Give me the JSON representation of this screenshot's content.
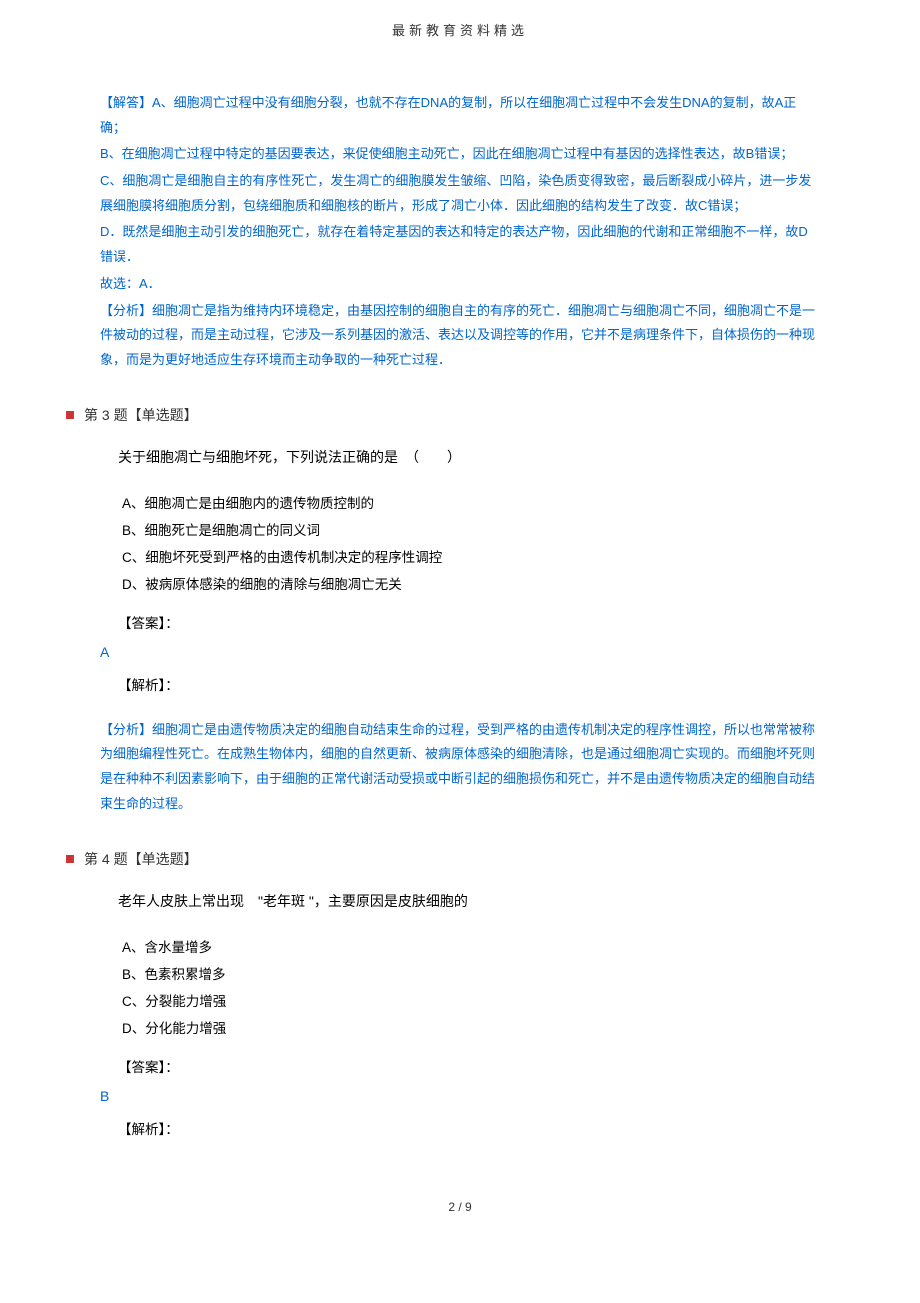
{
  "header": {
    "title": "最新教育资料精选"
  },
  "explanation1": {
    "line1": "【解答】A、细胞凋亡过程中没有细胞分裂，也就不存在DNA的复制，所以在细胞凋亡过程中不会发生DNA的复制，故A正确；",
    "line2": "B、在细胞凋亡过程中特定的基因要表达，来促使细胞主动死亡，因此在细胞凋亡过程中有基因的选择性表达，故B错误；",
    "line3": "C、细胞凋亡是细胞自主的有序性死亡，发生凋亡的细胞膜发生皱缩、凹陷，染色质变得致密，最后断裂成小碎片，进一步发展细胞膜将细胞质分割，包绕细胞质和细胞核的断片，形成了凋亡小体．因此细胞的结构发生了改变．故C错误；",
    "line4": "D．既然是细胞主动引发的细胞死亡，就存在着特定基因的表达和特定的表达产物，因此细胞的代谢和正常细胞不一样，故D错误．",
    "line5": "故选：A．",
    "line6": "【分析】细胞凋亡是指为维持内环境稳定，由基因控制的细胞自主的有序的死亡．细胞凋亡与细胞凋亡不同，细胞凋亡不是一件被动的过程，而是主动过程，它涉及一系列基因的激活、表达以及调控等的作用，它并不是病理条件下，自体损伤的一种现象，而是为更好地适应生存环境而主动争取的一种死亡过程．"
  },
  "question3": {
    "title": "第 3 题【单选题】",
    "stem": "关于细胞凋亡与细胞坏死，下列说法正确的是　（　　）",
    "optionA": "A、细胞凋亡是由细胞内的遗传物质控制的",
    "optionB": "B、细胞死亡是细胞凋亡的同义词",
    "optionC": "C、细胞坏死受到严格的由遗传机制决定的程序性调控",
    "optionD": "D、被病原体感染的细胞的清除与细胞凋亡无关",
    "answerLabel": "【答案】：",
    "answer": "A",
    "analysisLabel": "【解析】：",
    "analysis": "【分析】细胞凋亡是由遗传物质决定的细胞自动结束生命的过程，受到严格的由遗传机制决定的程序性调控，所以也常常被称为细胞编程性死亡。在成熟生物体内，细胞的自然更新、被病原体感染的细胞清除，也是通过细胞凋亡实现的。而细胞坏死则是在种种不利因素影响下，由于细胞的正常代谢活动受损或中断引起的细胞损伤和死亡，并不是由遗传物质决定的细胞自动结束生命的过程。"
  },
  "question4": {
    "title": "第 4 题【单选题】",
    "stem": "老年人皮肤上常出现　\"老年斑 \"，主要原因是皮肤细胞的",
    "optionA": "A、含水量增多",
    "optionB": "B、色素积累增多",
    "optionC": "C、分裂能力增强",
    "optionD": "D、分化能力增强",
    "answerLabel": "【答案】：",
    "answer": "B",
    "analysisLabel": "【解析】："
  },
  "footer": {
    "page": "2 / 9"
  }
}
